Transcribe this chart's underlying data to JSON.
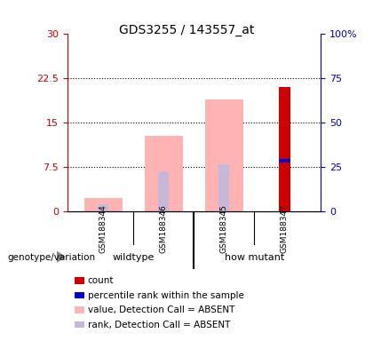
{
  "title": "GDS3255 / 143557_at",
  "samples": [
    "GSM188344",
    "GSM188346",
    "GSM188345",
    "GSM188347"
  ],
  "groups": [
    "wildtype",
    "wildtype",
    "how mutant",
    "how mutant"
  ],
  "group_labels": [
    "wildtype",
    "how mutant"
  ],
  "ylim_left": [
    0,
    30
  ],
  "ylim_right": [
    0,
    100
  ],
  "yticks_left": [
    0,
    7.5,
    15,
    22.5,
    30
  ],
  "yticks_right": [
    0,
    25,
    50,
    75,
    100
  ],
  "ytick_labels_left": [
    "0",
    "7.5",
    "15",
    "22.5",
    "30"
  ],
  "ytick_labels_right": [
    "0",
    "25",
    "50",
    "75",
    "100%"
  ],
  "left_axis_color": "#cc0000",
  "right_axis_color": "#0000cc",
  "bar_width": 0.35,
  "value_absent": [
    2.2,
    12.8,
    19.0,
    null
  ],
  "rank_absent": [
    1.2,
    6.8,
    8.0,
    null
  ],
  "count_value": [
    null,
    null,
    null,
    21.0
  ],
  "percentile_rank": [
    null,
    null,
    null,
    28.5
  ],
  "background_plot": "#ffffff",
  "color_value_absent": "#ffb3b3",
  "color_rank_absent": "#c8b8d8",
  "color_count": "#cc0000",
  "color_percentile": "#0000cc",
  "legend_items": [
    {
      "label": "count",
      "color": "#cc0000"
    },
    {
      "label": "percentile rank within the sample",
      "color": "#0000cc"
    },
    {
      "label": "value, Detection Call = ABSENT",
      "color": "#ffb3b3"
    },
    {
      "label": "rank, Detection Call = ABSENT",
      "color": "#c8b8d8"
    }
  ],
  "xlabel_left": "genotype/variation",
  "group_bg_color": "#90ee90",
  "sample_area_bg": "#c8c8c8"
}
